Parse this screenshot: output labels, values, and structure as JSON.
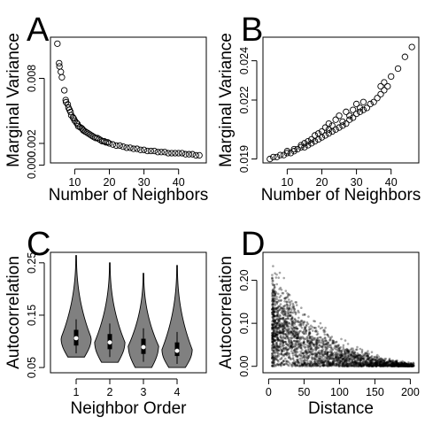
{
  "chart_data": [
    {
      "panel": "A",
      "type": "scatter",
      "xlabel": "Number of Neighbors",
      "ylabel": "Marginal Variance",
      "xlim": [
        3,
        48
      ],
      "ylim": [
        0.0002,
        0.0118
      ],
      "xticks": [
        10,
        20,
        30,
        40
      ],
      "yticks": [
        0.0,
        0.002,
        0.008
      ],
      "ytick_labels": [
        "0.000",
        "0.002",
        "0.008"
      ],
      "grid": false,
      "marker": "open-circle",
      "series": [
        {
          "x": [
            5,
            5.5,
            5.6,
            6,
            6.3,
            7,
            7.4,
            7.5,
            8,
            8.2,
            8.5,
            8.8,
            9,
            9.5,
            9.7,
            10,
            10.5,
            10.8,
            11,
            11.5,
            12,
            12.3,
            12.5,
            13,
            13.5,
            14,
            14.5,
            15,
            15.5,
            16,
            16.5,
            17,
            17.5,
            18,
            18.5,
            19,
            19.5,
            20,
            21,
            22,
            23,
            24,
            25,
            26,
            27,
            28,
            29,
            30,
            31,
            32,
            33,
            34,
            35,
            36,
            37,
            38,
            39,
            40,
            41,
            42,
            43,
            44,
            45,
            46
          ],
          "y": [
            0.0112,
            0.0094,
            0.0091,
            0.0086,
            0.0081,
            0.0069,
            0.006,
            0.0058,
            0.0056,
            0.0053,
            0.0051,
            0.0049,
            0.0046,
            0.0044,
            0.0043,
            0.0041,
            0.0039,
            0.0038,
            0.0036,
            0.0035,
            0.0034,
            0.0033,
            0.0032,
            0.0031,
            0.003,
            0.0029,
            0.0028,
            0.0027,
            0.0026,
            0.0025,
            0.0025,
            0.0024,
            0.0023,
            0.0022,
            0.0022,
            0.0021,
            0.0021,
            0.002,
            0.0019,
            0.0018,
            0.0018,
            0.0017,
            0.0016,
            0.0016,
            0.0015,
            0.0015,
            0.0014,
            0.0014,
            0.0013,
            0.0013,
            0.0013,
            0.0012,
            0.0012,
            0.0012,
            0.0011,
            0.0011,
            0.0011,
            0.0011,
            0.0011,
            0.001,
            0.001,
            0.001,
            0.0009,
            0.0009
          ]
        }
      ]
    },
    {
      "panel": "B",
      "type": "scatter",
      "xlabel": "Number of Neighbors",
      "ylabel": "Marginal Variance",
      "xlim": [
        3,
        48
      ],
      "ylim": [
        0.0188,
        0.0252
      ],
      "xticks": [
        10,
        20,
        30,
        40
      ],
      "yticks": [
        0.019,
        0.022,
        0.024
      ],
      "ytick_labels": [
        "0.019",
        "0.022",
        "0.024"
      ],
      "grid": false,
      "marker": "open-circle",
      "series": [
        {
          "x": [
            5,
            6,
            7,
            8,
            9,
            10,
            10,
            11,
            12,
            12,
            13,
            14,
            14,
            15,
            15,
            16,
            16,
            17,
            17,
            18,
            18,
            19,
            19,
            20,
            20,
            21,
            21,
            22,
            22,
            22,
            23,
            23,
            24,
            24,
            25,
            25,
            26,
            26,
            27,
            27,
            28,
            28,
            29,
            29,
            30,
            30,
            31,
            31,
            32,
            32,
            33,
            34,
            35,
            36,
            37,
            37,
            38,
            38,
            39,
            40,
            42,
            44,
            46
          ],
          "y": [
            0.019,
            0.0191,
            0.0191,
            0.0192,
            0.0192,
            0.0193,
            0.0194,
            0.0193,
            0.0194,
            0.0195,
            0.0195,
            0.0196,
            0.0197,
            0.0196,
            0.0198,
            0.0197,
            0.0199,
            0.0198,
            0.02,
            0.0199,
            0.0202,
            0.02,
            0.0203,
            0.0201,
            0.0204,
            0.0202,
            0.0206,
            0.0203,
            0.0205,
            0.0208,
            0.0204,
            0.0207,
            0.0205,
            0.021,
            0.0206,
            0.0212,
            0.0207,
            0.0209,
            0.0208,
            0.0214,
            0.021,
            0.0212,
            0.0211,
            0.0215,
            0.0213,
            0.0218,
            0.0214,
            0.0216,
            0.0215,
            0.0219,
            0.0216,
            0.0218,
            0.0219,
            0.0221,
            0.0223,
            0.0227,
            0.0225,
            0.0229,
            0.0227,
            0.0232,
            0.0236,
            0.0242,
            0.0247
          ]
        }
      ]
    },
    {
      "panel": "C",
      "type": "violin",
      "xlabel": "Neighbor Order",
      "ylabel": "Autocorrelation",
      "categories": [
        "1",
        "2",
        "3",
        "4"
      ],
      "ylim": [
        0.04,
        0.27
      ],
      "yticks": [
        0.05,
        0.15,
        0.25
      ],
      "ytick_labels": [
        "0.05",
        "0.15",
        "0.25"
      ],
      "grid": false,
      "fill_color": "#808080",
      "violins": [
        {
          "min": 0.07,
          "q1": 0.092,
          "median": 0.106,
          "q3": 0.122,
          "max": 0.264,
          "mode": 0.105
        },
        {
          "min": 0.06,
          "q1": 0.085,
          "median": 0.098,
          "q3": 0.114,
          "max": 0.25,
          "mode": 0.097
        },
        {
          "min": 0.05,
          "q1": 0.076,
          "median": 0.089,
          "q3": 0.105,
          "max": 0.23,
          "mode": 0.09
        },
        {
          "min": 0.05,
          "q1": 0.072,
          "median": 0.082,
          "q3": 0.098,
          "max": 0.245,
          "mode": 0.083
        }
      ]
    },
    {
      "panel": "D",
      "type": "scatter",
      "xlabel": "Distance",
      "ylabel": "Autocorrelation",
      "xlim": [
        -8,
        212
      ],
      "ylim": [
        -0.015,
        0.265
      ],
      "xticks": [
        0,
        50,
        100,
        150,
        200
      ],
      "yticks": [
        0.0,
        0.1,
        0.2
      ],
      "ytick_labels": [
        "0.00",
        "0.10",
        "0.20"
      ],
      "grid": false,
      "marker": "translucent-dot",
      "density_profile": {
        "distance": [
          5,
          25,
          50,
          75,
          100,
          125,
          150,
          175,
          200
        ],
        "center": [
          0.09,
          0.08,
          0.045,
          0.03,
          0.02,
          0.012,
          0.007,
          0.004,
          0.002
        ],
        "upper": [
          0.24,
          0.2,
          0.14,
          0.1,
          0.07,
          0.05,
          0.03,
          0.015,
          0.01
        ]
      }
    }
  ]
}
